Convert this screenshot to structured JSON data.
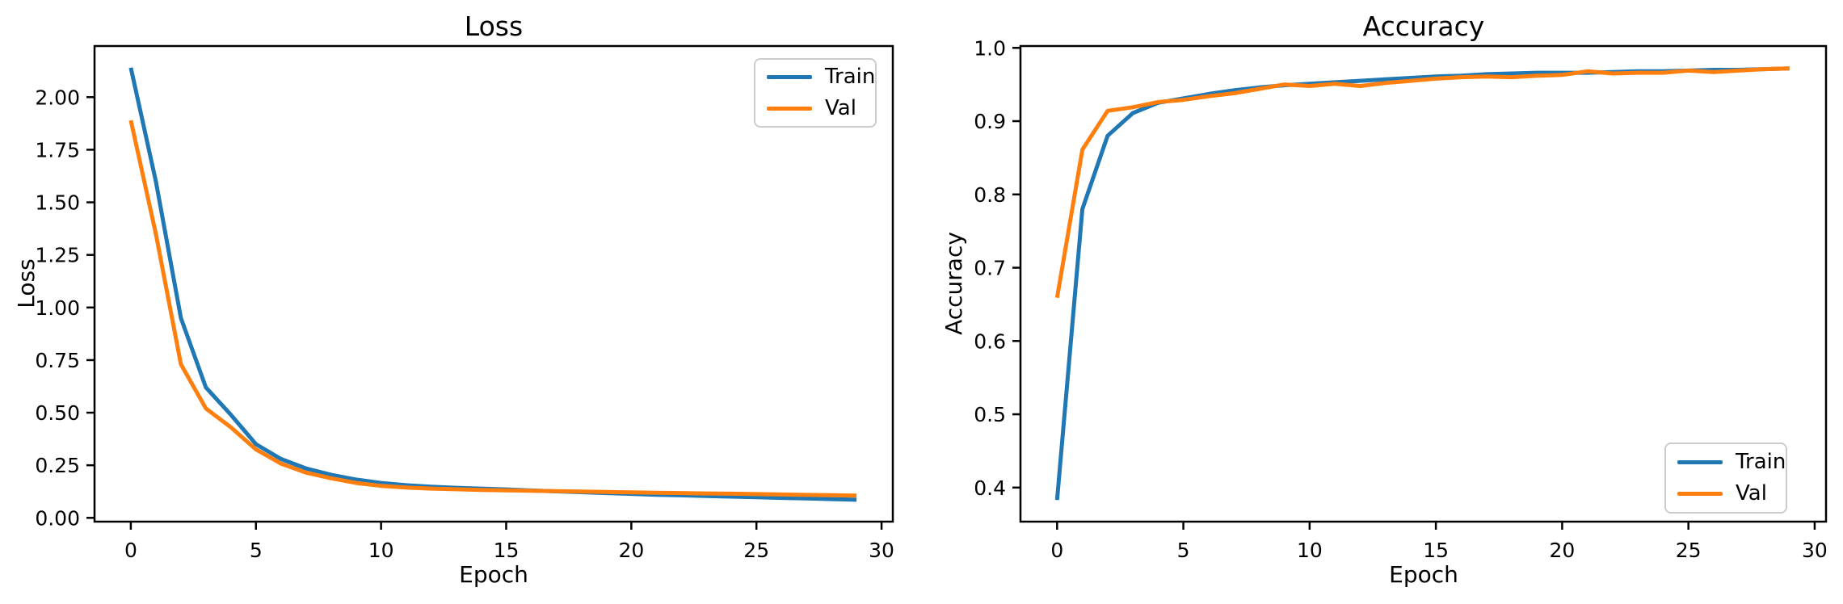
{
  "figure": {
    "background": "#ffffff",
    "text_color": "#000000",
    "frame_color": "#000000"
  },
  "chart_data": [
    {
      "type": "line",
      "title": "Loss",
      "xlabel": "Epoch",
      "ylabel": "Loss",
      "grid": false,
      "legend_position": "upper right",
      "xlim": [
        -1.45,
        30.45
      ],
      "ylim": [
        -0.018,
        2.243
      ],
      "xticks": [
        0,
        5,
        10,
        15,
        20,
        25,
        30
      ],
      "xtick_labels": [
        "0",
        "5",
        "10",
        "15",
        "20",
        "25",
        "30"
      ],
      "yticks": [
        0.0,
        0.25,
        0.5,
        0.75,
        1.0,
        1.25,
        1.5,
        1.75,
        2.0
      ],
      "ytick_labels": [
        "0.00",
        "0.25",
        "0.50",
        "0.75",
        "1.00",
        "1.25",
        "1.50",
        "1.75",
        "2.00"
      ],
      "x": [
        0,
        1,
        2,
        3,
        4,
        5,
        6,
        7,
        8,
        9,
        10,
        11,
        12,
        13,
        14,
        15,
        16,
        17,
        18,
        19,
        20,
        21,
        22,
        23,
        24,
        25,
        26,
        27,
        28,
        29
      ],
      "series": [
        {
          "name": "Train",
          "color": "#1f77b4",
          "values": [
            2.14,
            1.6,
            0.95,
            0.62,
            0.49,
            0.35,
            0.28,
            0.235,
            0.205,
            0.182,
            0.166,
            0.155,
            0.148,
            0.143,
            0.139,
            0.135,
            0.13,
            0.126,
            0.122,
            0.118,
            0.114,
            0.11,
            0.107,
            0.104,
            0.101,
            0.098,
            0.095,
            0.092,
            0.089,
            0.086
          ]
        },
        {
          "name": "Val",
          "color": "#ff7f0e",
          "values": [
            1.89,
            1.35,
            0.73,
            0.52,
            0.43,
            0.325,
            0.258,
            0.215,
            0.188,
            0.166,
            0.152,
            0.144,
            0.139,
            0.136,
            0.133,
            0.131,
            0.129,
            0.127,
            0.125,
            0.123,
            0.121,
            0.119,
            0.118,
            0.116,
            0.115,
            0.113,
            0.111,
            0.109,
            0.108,
            0.106
          ]
        }
      ]
    },
    {
      "type": "line",
      "title": "Accuracy",
      "xlabel": "Epoch",
      "ylabel": "Accuracy",
      "grid": false,
      "legend_position": "lower right",
      "xlim": [
        -1.45,
        30.45
      ],
      "ylim": [
        0.3535,
        1.0025
      ],
      "xticks": [
        0,
        5,
        10,
        15,
        20,
        25,
        30
      ],
      "xtick_labels": [
        "0",
        "5",
        "10",
        "15",
        "20",
        "25",
        "30"
      ],
      "yticks": [
        0.4,
        0.5,
        0.6,
        0.7,
        0.8,
        0.9,
        1.0
      ],
      "ytick_labels": [
        "0.4",
        "0.5",
        "0.6",
        "0.7",
        "0.8",
        "0.9",
        "1.0"
      ],
      "x": [
        0,
        1,
        2,
        3,
        4,
        5,
        6,
        7,
        8,
        9,
        10,
        11,
        12,
        13,
        14,
        15,
        16,
        17,
        18,
        19,
        20,
        21,
        22,
        23,
        24,
        25,
        26,
        27,
        28,
        29
      ],
      "series": [
        {
          "name": "Train",
          "color": "#1f77b4",
          "values": [
            0.383,
            0.78,
            0.88,
            0.911,
            0.925,
            0.931,
            0.937,
            0.942,
            0.946,
            0.949,
            0.951,
            0.953,
            0.955,
            0.957,
            0.959,
            0.961,
            0.962,
            0.964,
            0.965,
            0.966,
            0.966,
            0.966,
            0.967,
            0.968,
            0.968,
            0.969,
            0.97,
            0.97,
            0.971,
            0.972
          ]
        },
        {
          "name": "Val",
          "color": "#ff7f0e",
          "values": [
            0.659,
            0.861,
            0.914,
            0.919,
            0.926,
            0.929,
            0.934,
            0.938,
            0.944,
            0.95,
            0.948,
            0.951,
            0.948,
            0.952,
            0.955,
            0.958,
            0.96,
            0.961,
            0.96,
            0.962,
            0.963,
            0.968,
            0.965,
            0.966,
            0.966,
            0.969,
            0.967,
            0.969,
            0.971,
            0.972
          ]
        }
      ]
    }
  ]
}
